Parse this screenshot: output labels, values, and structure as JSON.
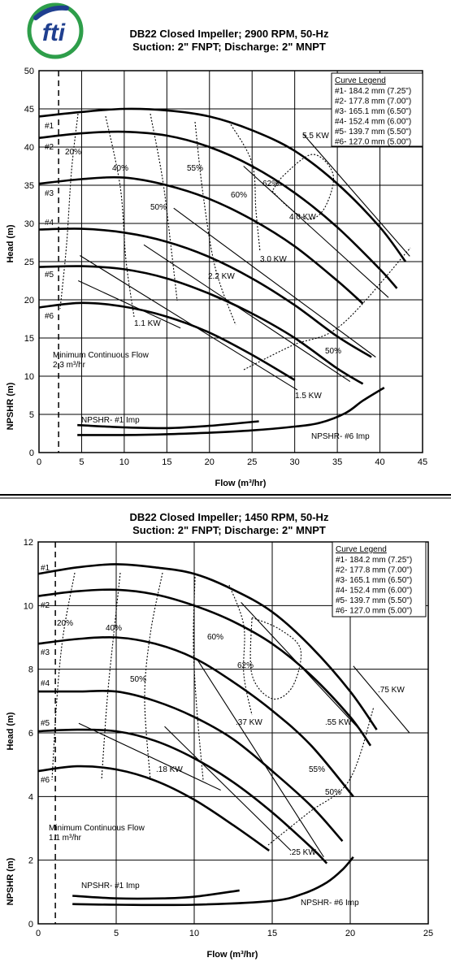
{
  "logo": {
    "text": "fti",
    "colors": {
      "blue": "#1f3f8f",
      "green": "#2e9e4a"
    }
  },
  "chart_data": [
    {
      "type": "line",
      "title": "DB22 Closed Impeller; 2900 RPM, 50-Hz",
      "subtitle": "Suction: 2\" FNPT; Discharge: 2\" MNPT",
      "xlabel": "Flow (m³/hr)",
      "ylabel": "Head (m)",
      "ylabel2": "NPSHR (m)",
      "xlim": [
        0,
        45
      ],
      "ylim": [
        0,
        50
      ],
      "xticks": [
        "0",
        "5",
        "10",
        "15",
        "20",
        "25",
        "30",
        "35",
        "40",
        "45"
      ],
      "yticks": [
        "0",
        "5",
        "10",
        "15",
        "20",
        "25",
        "30",
        "35",
        "40",
        "45",
        "50"
      ],
      "grid": true,
      "legend_position": "top-right",
      "legend": {
        "title": "Curve Legend",
        "entries": [
          "#1- 184.2 mm (7.25\")",
          "#2- 177.8 mm (7.00\")",
          "#3- 165.1 mm (6.50\")",
          "#4- 152.4 mm (6.00\")",
          "#5- 139.7 mm (5.50\")",
          "#6- 127.0 mm (5.00\")"
        ]
      },
      "series": [
        {
          "name": "#1",
          "x": [
            0,
            5,
            10,
            15,
            20,
            25,
            30,
            35,
            40,
            43
          ],
          "y": [
            44,
            44.6,
            45,
            44.8,
            44,
            42.2,
            39.5,
            35.2,
            29.5,
            25
          ]
        },
        {
          "name": "#2",
          "x": [
            0,
            5,
            10,
            15,
            20,
            25,
            30,
            35,
            40,
            42
          ],
          "y": [
            41.2,
            41.8,
            42,
            41.5,
            40,
            37.5,
            34,
            29.5,
            24,
            21.5
          ]
        },
        {
          "name": "#3",
          "x": [
            0,
            5,
            10,
            15,
            20,
            25,
            30,
            35,
            38
          ],
          "y": [
            35.2,
            35.8,
            36,
            35,
            33.2,
            30.5,
            27,
            22.5,
            19.5
          ]
        },
        {
          "name": "#4",
          "x": [
            0,
            5,
            10,
            15,
            20,
            25,
            30,
            35,
            39
          ],
          "y": [
            29.2,
            29.3,
            28.8,
            27.6,
            25.6,
            22.8,
            19.3,
            15.2,
            12.5
          ]
        },
        {
          "name": "#5",
          "x": [
            0,
            5,
            10,
            15,
            20,
            25,
            30,
            35,
            38
          ],
          "y": [
            24.3,
            24.4,
            24,
            22.8,
            20.8,
            18.2,
            15,
            11,
            9
          ]
        },
        {
          "name": "#6",
          "x": [
            0,
            5,
            10,
            15,
            20,
            25,
            30
          ],
          "y": [
            19,
            19.6,
            19.1,
            17.8,
            15.7,
            12.8,
            9.5
          ]
        },
        {
          "name": "NPSHR- #1 Imp",
          "x": [
            4.5,
            10,
            15,
            20,
            25,
            30,
            33,
            36,
            38,
            40.5
          ],
          "y": [
            2.3,
            2.3,
            2.4,
            2.6,
            2.9,
            3.4,
            3.9,
            5.2,
            6.8,
            8.5
          ]
        },
        {
          "name": "NPSHR- #6 Imp",
          "x": [
            4.5,
            10,
            15,
            20,
            25.8
          ],
          "y": [
            3.6,
            3.3,
            3.2,
            3.5,
            4.1
          ]
        }
      ],
      "power_lines": [
        {
          "label": "5.5 KW",
          "x": [
            31,
            43.5
          ],
          "y": [
            41.7,
            25.7
          ]
        },
        {
          "label": "4.0 KW",
          "x": [
            24,
            41
          ],
          "y": [
            37.5,
            20.3
          ]
        },
        {
          "label": "3.0 KW",
          "x": [
            15.8,
            39.5
          ],
          "y": [
            32,
            12.5
          ]
        },
        {
          "label": "2.2 KW",
          "x": [
            12.3,
            36.5
          ],
          "y": [
            27.2,
            9.3
          ]
        },
        {
          "label": "1.5 KW",
          "x": [
            4.8,
            30.3
          ],
          "y": [
            25.8,
            8.2
          ]
        },
        {
          "label": "1.1 KW",
          "x": [
            4.6,
            16.6
          ],
          "y": [
            22.5,
            16.3
          ]
        }
      ],
      "efficiency_labels": [
        "20%",
        "40%",
        "50%",
        "55%",
        "60%",
        "62%",
        "50%"
      ],
      "min_flow_x": 2.3,
      "annotations": [
        "Minimum Continuous Flow",
        "2.3 m³/hr"
      ]
    },
    {
      "type": "line",
      "title": "DB22 Closed Impeller; 1450 RPM, 50-Hz",
      "subtitle": "Suction: 2\" FNPT; Discharge: 2\" MNPT",
      "xlabel": "Flow (m³/hr)",
      "ylabel": "Head (m)",
      "ylabel2": "NPSHR (m)",
      "xlim": [
        0,
        25
      ],
      "ylim": [
        0,
        12
      ],
      "xticks": [
        "0",
        "5",
        "10",
        "15",
        "20",
        "25"
      ],
      "yticks": [
        "0",
        "2",
        "4",
        "6",
        "8",
        "10",
        "12"
      ],
      "grid": true,
      "legend_position": "top-right",
      "legend": {
        "title": "Curve Legend",
        "entries": [
          "#1- 184.2 mm (7.25\")",
          "#2- 177.8 mm (7.00\")",
          "#3- 165.1 mm (6.50\")",
          "#4- 152.4 mm (6.00\")",
          "#5- 139.7 mm (5.50\")",
          "#6- 127.0 mm (5.00\")"
        ]
      },
      "series": [
        {
          "name": "#1",
          "x": [
            0,
            2.5,
            5,
            7.5,
            10,
            12.5,
            15,
            17.5,
            20,
            21.7
          ],
          "y": [
            11,
            11.2,
            11.3,
            11.2,
            11,
            10.5,
            9.8,
            8.7,
            7.3,
            6.1
          ]
        },
        {
          "name": "#2",
          "x": [
            0,
            2.5,
            5,
            7.5,
            10,
            12.5,
            15,
            17.5,
            20,
            21.3
          ],
          "y": [
            10.3,
            10.45,
            10.5,
            10.35,
            10,
            9.5,
            8.8,
            7.8,
            6.5,
            5.6
          ]
        },
        {
          "name": "#3",
          "x": [
            0,
            2.5,
            5,
            7.5,
            10,
            12.5,
            15,
            17.5,
            20.2
          ],
          "y": [
            8.8,
            8.95,
            9,
            8.8,
            8.35,
            7.6,
            6.7,
            5.6,
            4
          ]
        },
        {
          "name": "#4",
          "x": [
            0,
            2.5,
            5,
            7.5,
            10,
            12.5,
            15,
            17.5,
            19.5
          ],
          "y": [
            7.3,
            7.3,
            7.3,
            7,
            6.5,
            5.8,
            4.8,
            3.7,
            2.6
          ]
        },
        {
          "name": "#5",
          "x": [
            0,
            2.5,
            5,
            7.5,
            10,
            12.5,
            15,
            17.5,
            18.5
          ],
          "y": [
            6.05,
            6.1,
            6.05,
            5.75,
            5.2,
            4.45,
            3.5,
            2.4,
            1.9
          ]
        },
        {
          "name": "#6",
          "x": [
            0,
            2.5,
            5,
            7.5,
            10,
            12.5,
            14.8
          ],
          "y": [
            4.8,
            4.95,
            4.85,
            4.5,
            3.9,
            3.1,
            2.3
          ]
        },
        {
          "name": "NPSHR- #1 Imp",
          "x": [
            2.2,
            5,
            10,
            15,
            17,
            18.5,
            19.5,
            20.2
          ],
          "y": [
            0.62,
            0.6,
            0.6,
            0.72,
            0.95,
            1.3,
            1.7,
            2.1
          ]
        },
        {
          "name": "NPSHR- #6 Imp",
          "x": [
            2.2,
            5,
            8,
            10,
            12.9
          ],
          "y": [
            0.88,
            0.8,
            0.8,
            0.85,
            1.05
          ]
        }
      ],
      "power_lines": [
        {
          "label": ".75 KW",
          "x": [
            20.2,
            23.8
          ],
          "y": [
            8.1,
            6
          ]
        },
        {
          "label": ".55 KW",
          "x": [
            13,
            20.8
          ],
          "y": [
            10.1,
            6
          ]
        },
        {
          "label": ".37 KW",
          "x": [
            10.2,
            18.3
          ],
          "y": [
            8.3,
            2.1
          ]
        },
        {
          "label": ".25 KW",
          "x": [
            8.1,
            16.2
          ],
          "y": [
            6.2,
            2.3
          ]
        },
        {
          "label": ".18 KW",
          "x": [
            2.6,
            11.7
          ],
          "y": [
            6.3,
            4.2
          ]
        }
      ],
      "efficiency_labels": [
        "20%",
        "40%",
        "50%",
        "60%",
        "62%",
        "55%",
        "50%"
      ],
      "min_flow_x": 1.1,
      "annotations": [
        "Minimum Continuous Flow",
        "1.1 m³/hr"
      ]
    }
  ]
}
